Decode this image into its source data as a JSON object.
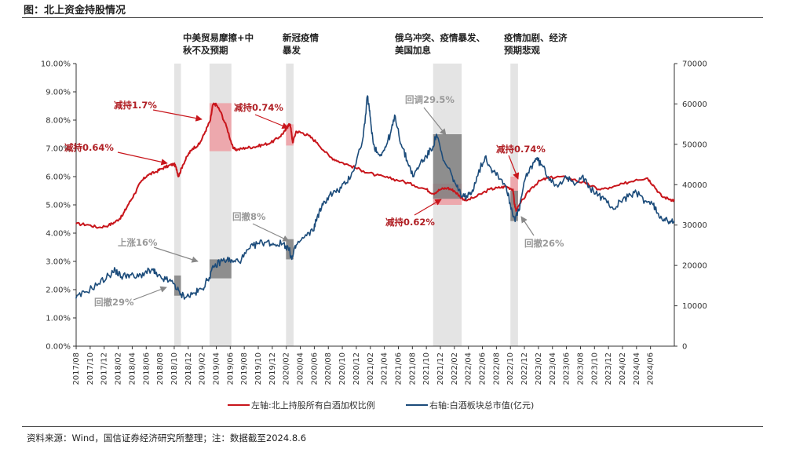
{
  "header": {
    "title": "图：北上资金持股情况"
  },
  "footer": {
    "source": "资料来源：Wind，国信证券经济研究所整理；注：数据截至2024.8.6"
  },
  "colors": {
    "red": "#c8151b",
    "blue": "#1b4b7a",
    "shade_grey": "#d9d9d9",
    "shade_dark": "#7f7f7f",
    "shade_red": "#ee9ea3",
    "red_text": "#b01f24",
    "grey_text": "#999999"
  },
  "chart_data": {
    "type": "line",
    "title": "北上资金持股情况",
    "x_ticks": [
      "2017/08",
      "2017/10",
      "2017/12",
      "2018/02",
      "2018/04",
      "2018/06",
      "2018/08",
      "2018/10",
      "2018/12",
      "2019/02",
      "2019/04",
      "2019/06",
      "2019/08",
      "2019/10",
      "2019/12",
      "2020/02",
      "2020/04",
      "2020/06",
      "2020/08",
      "2020/10",
      "2020/12",
      "2021/02",
      "2021/04",
      "2021/06",
      "2021/08",
      "2021/10",
      "2021/12",
      "2022/02",
      "2022/04",
      "2022/06",
      "2022/08",
      "2022/10",
      "2022/12",
      "2023/02",
      "2023/04",
      "2023/06",
      "2023/08",
      "2023/10",
      "2023/12",
      "2024/02",
      "2024/04",
      "2024/06"
    ],
    "x_range": [
      2017.583,
      2024.7
    ],
    "y_left": {
      "label": "左轴:北上持股所有白酒加权比例",
      "ticks": [
        "0.00%",
        "1.00%",
        "2.00%",
        "3.00%",
        "4.00%",
        "5.00%",
        "6.00%",
        "7.00%",
        "8.00%",
        "9.00%",
        "10.00%"
      ],
      "range": [
        0,
        10
      ]
    },
    "y_right": {
      "label": "右轴:白酒板块总市值(亿元)",
      "ticks": [
        "0",
        "10000",
        "20000",
        "30000",
        "40000",
        "50000",
        "60000",
        "70000"
      ],
      "range": [
        0,
        70000
      ]
    },
    "series": [
      {
        "name": "左轴:北上持股所有白酒加权比例",
        "axis": "left",
        "color": "#c8151b",
        "points": [
          [
            2017.58,
            4.33
          ],
          [
            2017.72,
            4.3
          ],
          [
            2017.85,
            4.2
          ],
          [
            2017.97,
            4.28
          ],
          [
            2018.05,
            4.4
          ],
          [
            2018.13,
            4.6
          ],
          [
            2018.2,
            5.0
          ],
          [
            2018.28,
            5.4
          ],
          [
            2018.35,
            5.8
          ],
          [
            2018.43,
            6.05
          ],
          [
            2018.52,
            6.15
          ],
          [
            2018.6,
            6.28
          ],
          [
            2018.68,
            6.38
          ],
          [
            2018.75,
            6.45
          ],
          [
            2018.78,
            6.25
          ],
          [
            2018.8,
            6.0
          ],
          [
            2018.85,
            6.4
          ],
          [
            2018.92,
            6.8
          ],
          [
            2018.97,
            7.0
          ],
          [
            2019.05,
            7.15
          ],
          [
            2019.12,
            7.6
          ],
          [
            2019.18,
            8.0
          ],
          [
            2019.21,
            8.55
          ],
          [
            2019.25,
            8.55
          ],
          [
            2019.3,
            8.3
          ],
          [
            2019.38,
            7.7
          ],
          [
            2019.45,
            7.0
          ],
          [
            2019.5,
            6.95
          ],
          [
            2019.6,
            7.02
          ],
          [
            2019.7,
            7.05
          ],
          [
            2019.8,
            7.12
          ],
          [
            2019.9,
            7.2
          ],
          [
            2020.0,
            7.4
          ],
          [
            2020.07,
            7.62
          ],
          [
            2020.1,
            7.8
          ],
          [
            2020.13,
            7.85
          ],
          [
            2020.16,
            7.2
          ],
          [
            2020.2,
            7.6
          ],
          [
            2020.27,
            7.55
          ],
          [
            2020.35,
            7.45
          ],
          [
            2020.45,
            7.2
          ],
          [
            2020.6,
            6.7
          ],
          [
            2020.7,
            6.55
          ],
          [
            2020.85,
            6.38
          ],
          [
            2021.0,
            6.2
          ],
          [
            2021.15,
            6.05
          ],
          [
            2021.3,
            5.95
          ],
          [
            2021.45,
            5.85
          ],
          [
            2021.6,
            5.7
          ],
          [
            2021.75,
            5.55
          ],
          [
            2021.83,
            5.4
          ],
          [
            2021.92,
            5.55
          ],
          [
            2022.0,
            5.6
          ],
          [
            2022.08,
            5.5
          ],
          [
            2022.15,
            5.3
          ],
          [
            2022.22,
            5.15
          ],
          [
            2022.35,
            5.3
          ],
          [
            2022.5,
            5.55
          ],
          [
            2022.6,
            5.6
          ],
          [
            2022.7,
            5.65
          ],
          [
            2022.78,
            5.55
          ],
          [
            2022.8,
            5.0
          ],
          [
            2022.82,
            4.8
          ],
          [
            2022.9,
            5.2
          ],
          [
            2023.0,
            5.6
          ],
          [
            2023.1,
            5.85
          ],
          [
            2023.2,
            5.95
          ],
          [
            2023.35,
            6.0
          ],
          [
            2023.5,
            5.9
          ],
          [
            2023.65,
            5.75
          ],
          [
            2023.8,
            5.55
          ],
          [
            2023.95,
            5.6
          ],
          [
            2024.1,
            5.75
          ],
          [
            2024.25,
            5.9
          ],
          [
            2024.38,
            5.95
          ],
          [
            2024.45,
            5.7
          ],
          [
            2024.55,
            5.3
          ],
          [
            2024.65,
            5.2
          ],
          [
            2024.7,
            5.15
          ]
        ]
      },
      {
        "name": "右轴:白酒板块总市值(亿元)",
        "axis": "right",
        "color": "#1b4b7a",
        "points": [
          [
            2017.58,
            11800
          ],
          [
            2017.7,
            13500
          ],
          [
            2017.85,
            15500
          ],
          [
            2017.97,
            17500
          ],
          [
            2018.05,
            18800
          ],
          [
            2018.12,
            17200
          ],
          [
            2018.2,
            17800
          ],
          [
            2018.3,
            17000
          ],
          [
            2018.4,
            18200
          ],
          [
            2018.5,
            18800
          ],
          [
            2018.55,
            17200
          ],
          [
            2018.65,
            16500
          ],
          [
            2018.75,
            15500
          ],
          [
            2018.82,
            12800
          ],
          [
            2018.9,
            12300
          ],
          [
            2019.0,
            13200
          ],
          [
            2019.08,
            14200
          ],
          [
            2019.15,
            16500
          ],
          [
            2019.22,
            19500
          ],
          [
            2019.3,
            21000
          ],
          [
            2019.38,
            21500
          ],
          [
            2019.45,
            20800
          ],
          [
            2019.55,
            21500
          ],
          [
            2019.65,
            24200
          ],
          [
            2019.75,
            25500
          ],
          [
            2019.85,
            25800
          ],
          [
            2019.95,
            25200
          ],
          [
            2020.05,
            25500
          ],
          [
            2020.12,
            23800
          ],
          [
            2020.15,
            21500
          ],
          [
            2020.2,
            25000
          ],
          [
            2020.3,
            27000
          ],
          [
            2020.4,
            28500
          ],
          [
            2020.45,
            32000
          ],
          [
            2020.52,
            35000
          ],
          [
            2020.6,
            37500
          ],
          [
            2020.7,
            38500
          ],
          [
            2020.8,
            40500
          ],
          [
            2020.9,
            44500
          ],
          [
            2021.0,
            52000
          ],
          [
            2021.05,
            62000
          ],
          [
            2021.08,
            57000
          ],
          [
            2021.12,
            50000
          ],
          [
            2021.18,
            47500
          ],
          [
            2021.25,
            48500
          ],
          [
            2021.32,
            52500
          ],
          [
            2021.38,
            57000
          ],
          [
            2021.45,
            50000
          ],
          [
            2021.52,
            46000
          ],
          [
            2021.6,
            42000
          ],
          [
            2021.68,
            45500
          ],
          [
            2021.75,
            47000
          ],
          [
            2021.83,
            49500
          ],
          [
            2021.87,
            52500
          ],
          [
            2021.95,
            46000
          ],
          [
            2022.05,
            42500
          ],
          [
            2022.13,
            38500
          ],
          [
            2022.2,
            37000
          ],
          [
            2022.28,
            37500
          ],
          [
            2022.35,
            42000
          ],
          [
            2022.45,
            47000
          ],
          [
            2022.52,
            44000
          ],
          [
            2022.6,
            42500
          ],
          [
            2022.7,
            39500
          ],
          [
            2022.75,
            35000
          ],
          [
            2022.8,
            31500
          ],
          [
            2022.85,
            33500
          ],
          [
            2022.92,
            41000
          ],
          [
            2023.0,
            44500
          ],
          [
            2023.05,
            46500
          ],
          [
            2023.12,
            45000
          ],
          [
            2023.2,
            42000
          ],
          [
            2023.3,
            40000
          ],
          [
            2023.42,
            41500
          ],
          [
            2023.5,
            40500
          ],
          [
            2023.6,
            42000
          ],
          [
            2023.7,
            39000
          ],
          [
            2023.8,
            37500
          ],
          [
            2023.9,
            35500
          ],
          [
            2024.0,
            34000
          ],
          [
            2024.05,
            36000
          ],
          [
            2024.15,
            37000
          ],
          [
            2024.25,
            38000
          ],
          [
            2024.35,
            36000
          ],
          [
            2024.45,
            35000
          ],
          [
            2024.5,
            33000
          ],
          [
            2024.58,
            31500
          ],
          [
            2024.65,
            30500
          ],
          [
            2024.7,
            31000
          ]
        ]
      }
    ],
    "shaded_periods": [
      {
        "kind": "grey",
        "x": [
          2018.75,
          2018.83
        ]
      },
      {
        "kind": "grey",
        "x": [
          2019.17,
          2019.43
        ]
      },
      {
        "kind": "grey",
        "x": [
          2020.08,
          2020.17
        ]
      },
      {
        "kind": "grey",
        "x": [
          2021.83,
          2022.17
        ]
      },
      {
        "kind": "grey",
        "x": [
          2022.75,
          2022.84
        ]
      },
      {
        "kind": "red",
        "x": [
          2019.17,
          2019.43
        ],
        "y_left": [
          6.9,
          8.6
        ]
      },
      {
        "kind": "red",
        "x": [
          2020.08,
          2020.17
        ],
        "y_left": [
          7.1,
          7.85
        ]
      },
      {
        "kind": "red",
        "x": [
          2021.83,
          2022.17
        ],
        "y_left": [
          5.0,
          5.75
        ]
      },
      {
        "kind": "red",
        "x": [
          2022.75,
          2022.84
        ],
        "y_left": [
          5.0,
          6.0
        ]
      },
      {
        "kind": "dark",
        "x": [
          2018.75,
          2018.83
        ],
        "y_right": [
          12500,
          17500
        ]
      },
      {
        "kind": "dark",
        "x": [
          2019.17,
          2019.43
        ],
        "y_right": [
          16800,
          21500
        ]
      },
      {
        "kind": "dark",
        "x": [
          2020.08,
          2020.17
        ],
        "y_right": [
          21500,
          26500
        ]
      },
      {
        "kind": "dark",
        "x": [
          2021.83,
          2022.17
        ],
        "y_right": [
          36500,
          52500
        ]
      },
      {
        "kind": "dark",
        "x": [
          2022.75,
          2022.84
        ],
        "y_right": [
          31000,
          38500
        ]
      }
    ],
    "annotations": {
      "events": [
        {
          "id": "e1",
          "lines": [
            "中美贸易摩擦+中",
            "秋不及预期"
          ]
        },
        {
          "id": "e2",
          "lines": [
            "新冠疫情",
            "暴发"
          ]
        },
        {
          "id": "e3",
          "lines": [
            "俄乌冲突、疫情暴发、",
            "美国加息"
          ]
        },
        {
          "id": "e4",
          "lines": [
            "疫情加剧、经济",
            "预期悲观"
          ]
        }
      ],
      "red": [
        "减持1.7%",
        "减持0.64%",
        "减持0.74%",
        "减持0.62%",
        "减持0.74%"
      ],
      "grey": [
        "回调29.5%",
        "回撤8%",
        "上涨16%",
        "回撤29%",
        "回撤26%"
      ]
    }
  }
}
